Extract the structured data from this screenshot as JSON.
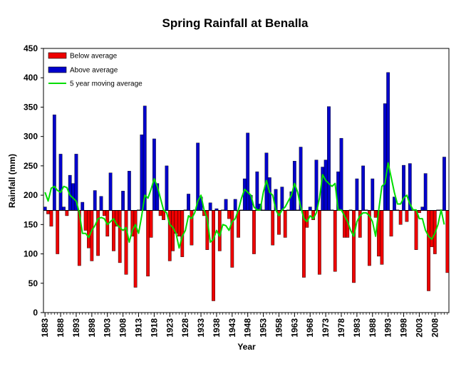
{
  "chart_data": {
    "type": "bar",
    "title": "Spring Rainfall at Benalla",
    "xlabel": "Year",
    "ylabel": "Rainfall (mm)",
    "ylim": [
      0,
      450
    ],
    "yticks": [
      0,
      50,
      100,
      150,
      200,
      250,
      300,
      350,
      400,
      450
    ],
    "baseline": 174,
    "first_year": 1883,
    "last_year": 2012,
    "xticks": [
      1883,
      1888,
      1893,
      1898,
      1903,
      1908,
      1913,
      1918,
      1923,
      1928,
      1933,
      1938,
      1943,
      1948,
      1953,
      1958,
      1963,
      1968,
      1973,
      1978,
      1983,
      1988,
      1993,
      1998,
      2003,
      2008
    ],
    "colors": {
      "below": "#ee0000",
      "above": "#0000cc",
      "moving_average": "#00dd00",
      "axis": "#000000"
    },
    "legend": [
      {
        "key": "below",
        "label": "Below average"
      },
      {
        "key": "above",
        "label": "Above average"
      },
      {
        "key": "moving_average",
        "label": "5 year moving average"
      }
    ],
    "series": [
      {
        "name": "Spring rainfall",
        "years": [
          1883,
          1884,
          1885,
          1886,
          1887,
          1888,
          1889,
          1890,
          1891,
          1892,
          1893,
          1894,
          1895,
          1896,
          1897,
          1898,
          1899,
          1900,
          1901,
          1902,
          1903,
          1904,
          1905,
          1906,
          1907,
          1908,
          1909,
          1910,
          1911,
          1912,
          1913,
          1914,
          1915,
          1916,
          1917,
          1918,
          1919,
          1920,
          1921,
          1922,
          1923,
          1924,
          1925,
          1926,
          1927,
          1928,
          1929,
          1930,
          1931,
          1932,
          1933,
          1934,
          1935,
          1936,
          1937,
          1938,
          1939,
          1940,
          1941,
          1942,
          1943,
          1944,
          1945,
          1946,
          1947,
          1948,
          1949,
          1950,
          1951,
          1952,
          1953,
          1954,
          1955,
          1956,
          1957,
          1958,
          1959,
          1960,
          1961,
          1962,
          1963,
          1964,
          1965,
          1966,
          1967,
          1968,
          1969,
          1970,
          1971,
          1972,
          1973,
          1974,
          1975,
          1976,
          1977,
          1978,
          1979,
          1980,
          1981,
          1982,
          1983,
          1984,
          1985,
          1986,
          1987,
          1988,
          1989,
          1990,
          1991,
          1992,
          1993,
          1994,
          1995,
          1996,
          1997,
          1998,
          1999,
          2000,
          2001,
          2002,
          2003,
          2004,
          2005,
          2006,
          2007,
          2008,
          2009,
          2010,
          2011,
          2012
        ],
        "values": [
          180,
          168,
          147,
          337,
          100,
          270,
          180,
          165,
          234,
          220,
          270,
          80,
          188,
          140,
          110,
          88,
          208,
          97,
          198,
          165,
          130,
          238,
          105,
          147,
          85,
          207,
          65,
          241,
          130,
          43,
          175,
          303,
          352,
          62,
          128,
          296,
          220,
          165,
          158,
          250,
          88,
          105,
          135,
          130,
          95,
          175,
          202,
          115,
          175,
          289,
          197,
          165,
          107,
          187,
          20,
          177,
          105,
          175,
          193,
          160,
          77,
          193,
          128,
          175,
          228,
          306,
          200,
          100,
          240,
          185,
          175,
          272,
          230,
          115,
          210,
          133,
          214,
          128,
          175,
          206,
          258,
          175,
          282,
          60,
          145,
          180,
          158,
          260,
          65,
          248,
          260,
          351,
          175,
          70,
          240,
          297,
          128,
          128,
          175,
          51,
          228,
          128,
          250,
          175,
          80,
          228,
          162,
          96,
          82,
          356,
          409,
          130,
          197,
          175,
          150,
          251,
          155,
          254,
          175,
          107,
          170,
          180,
          237,
          37,
          112,
          100,
          175,
          175,
          265,
          68
        ]
      },
      {
        "name": "5 year moving average",
        "years": [
          1883,
          1884,
          1885,
          1886,
          1887,
          1888,
          1889,
          1890,
          1891,
          1892,
          1893,
          1894,
          1895,
          1896,
          1897,
          1898,
          1899,
          1900,
          1901,
          1902,
          1903,
          1904,
          1905,
          1906,
          1907,
          1908,
          1909,
          1910,
          1911,
          1912,
          1913,
          1914,
          1915,
          1916,
          1917,
          1918,
          1919,
          1920,
          1921,
          1922,
          1923,
          1924,
          1925,
          1926,
          1927,
          1928,
          1929,
          1930,
          1931,
          1932,
          1933,
          1934,
          1935,
          1936,
          1937,
          1938,
          1939,
          1940,
          1941,
          1942,
          1943,
          1944,
          1945,
          1946,
          1947,
          1948,
          1949,
          1950,
          1951,
          1952,
          1953,
          1954,
          1955,
          1956,
          1957,
          1958,
          1959,
          1960,
          1961,
          1962,
          1963,
          1964,
          1965,
          1966,
          1967,
          1968,
          1969,
          1970,
          1971,
          1972,
          1973,
          1974,
          1975,
          1976,
          1977,
          1978,
          1979,
          1980,
          1981,
          1982,
          1983,
          1984,
          1985,
          1986,
          1987,
          1988,
          1989,
          1990,
          1991,
          1992,
          1993,
          1994,
          1995,
          1996,
          1997,
          1998,
          1999,
          2000,
          2001,
          2002,
          2003,
          2004,
          2005,
          2006,
          2007,
          2008,
          2009,
          2010,
          2011
        ],
        "values": [
          205,
          190,
          212,
          215,
          208,
          205,
          215,
          213,
          200,
          195,
          190,
          170,
          135,
          135,
          128,
          140,
          148,
          160,
          162,
          160,
          150,
          155,
          160,
          150,
          145,
          140,
          145,
          120,
          140,
          150,
          135,
          165,
          200,
          195,
          210,
          228,
          215,
          195,
          175,
          170,
          150,
          145,
          135,
          110,
          130,
          140,
          165,
          160,
          170,
          190,
          200,
          175,
          160,
          120,
          125,
          140,
          130,
          150,
          148,
          140,
          155,
          160,
          175,
          195,
          210,
          205,
          200,
          180,
          175,
          175,
          205,
          225,
          205,
          200,
          175,
          165,
          175,
          180,
          190,
          200,
          220,
          205,
          180,
          160,
          155,
          165,
          160,
          170,
          195,
          235,
          225,
          220,
          215,
          220,
          175,
          175,
          165,
          155,
          140,
          130,
          155,
          165,
          170,
          170,
          165,
          155,
          130,
          175,
          215,
          220,
          255,
          230,
          205,
          185,
          185,
          195,
          200,
          185,
          175,
          175,
          160,
          160,
          140,
          130,
          125,
          135,
          150,
          175,
          150
        ]
      }
    ]
  }
}
